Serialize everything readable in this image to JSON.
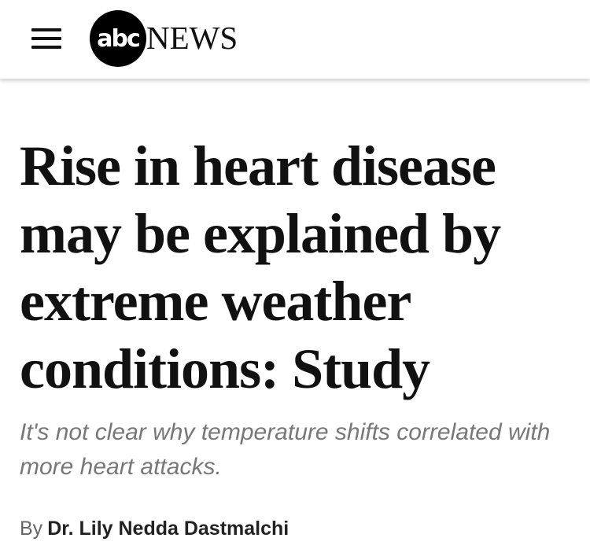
{
  "header": {
    "logo_mark": "abc",
    "logo_text": "NEWS"
  },
  "article": {
    "headline": "Rise in heart disease may be explained by extreme weather conditions: Study",
    "subheadline": "It's not clear why temperature shifts correlated with more heart attacks.",
    "byline_prefix": "By",
    "author": "Dr. Lily Nedda Dastmalchi"
  }
}
